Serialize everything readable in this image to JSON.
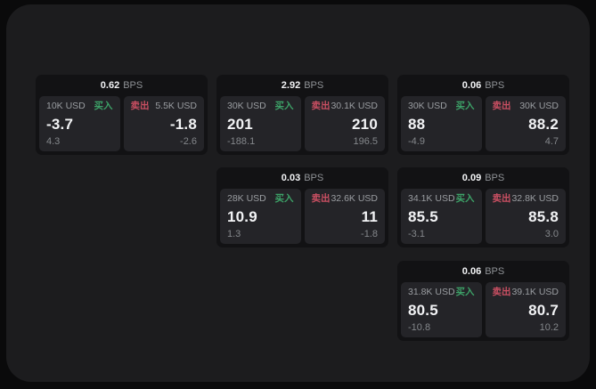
{
  "labels": {
    "bps_unit": "BPS",
    "buy": "买入",
    "sell": "卖出"
  },
  "colors": {
    "buy_green": "#3da268",
    "sell_red": "#c94f62",
    "panel_bg": "#1c1c1e",
    "card_bg": "#121214",
    "tile_bg": "#242428"
  },
  "cards": [
    {
      "bps": "0.62",
      "buy": {
        "size": "10K USD",
        "price": "-3.7",
        "delta": "4.3"
      },
      "sell": {
        "size": "5.5K USD",
        "price": "-1.8",
        "delta": "-2.6"
      }
    },
    {
      "bps": "2.92",
      "buy": {
        "size": "30K USD",
        "price": "201",
        "delta": "-188.1"
      },
      "sell": {
        "size": "30.1K USD",
        "price": "210",
        "delta": "196.5"
      }
    },
    {
      "bps": "0.06",
      "buy": {
        "size": "30K USD",
        "price": "88",
        "delta": "-4.9"
      },
      "sell": {
        "size": "30K USD",
        "price": "88.2",
        "delta": "4.7"
      }
    },
    {
      "bps": "0.03",
      "buy": {
        "size": "28K USD",
        "price": "10.9",
        "delta": "1.3"
      },
      "sell": {
        "size": "32.6K USD",
        "price": "11",
        "delta": "-1.8"
      }
    },
    {
      "bps": "0.09",
      "buy": {
        "size": "34.1K USD",
        "price": "85.5",
        "delta": "-3.1"
      },
      "sell": {
        "size": "32.8K USD",
        "price": "85.8",
        "delta": "3.0"
      }
    },
    {
      "bps": "0.06",
      "buy": {
        "size": "31.8K USD",
        "price": "80.5",
        "delta": "-10.8"
      },
      "sell": {
        "size": "39.1K USD",
        "price": "80.7",
        "delta": "10.2"
      }
    }
  ]
}
